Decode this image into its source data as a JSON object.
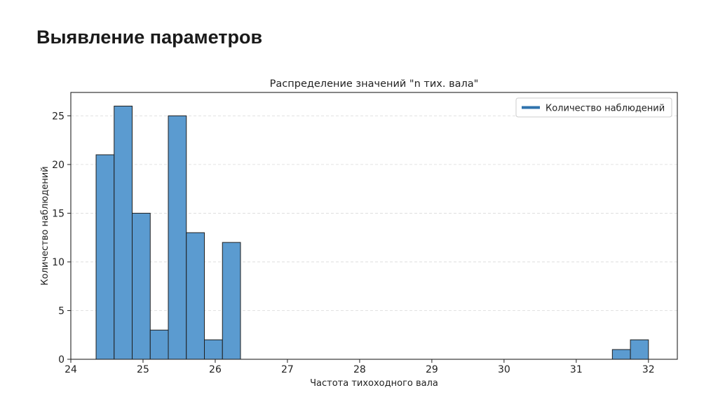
{
  "slide": {
    "title": "Выявление параметров"
  },
  "chart_data": {
    "type": "bar",
    "title": "Распределение значений \"n тих. вала\"",
    "xlabel": "Частота тихоходного вала",
    "ylabel": "Количество наблюдений",
    "xlim": [
      24,
      32.4
    ],
    "ylim": [
      0,
      27.4
    ],
    "xticks": [
      24,
      25,
      26,
      27,
      28,
      29,
      30,
      31,
      32
    ],
    "yticks": [
      0,
      5,
      10,
      15,
      20,
      25
    ],
    "bin_width": 0.25,
    "bins": [
      {
        "x0": 24.35,
        "value": 21
      },
      {
        "x0": 24.6,
        "value": 26
      },
      {
        "x0": 24.85,
        "value": 15
      },
      {
        "x0": 25.1,
        "value": 3
      },
      {
        "x0": 25.35,
        "value": 25
      },
      {
        "x0": 25.6,
        "value": 13
      },
      {
        "x0": 25.85,
        "value": 2
      },
      {
        "x0": 26.1,
        "value": 12
      },
      {
        "x0": 31.5,
        "value": 1
      },
      {
        "x0": 31.75,
        "value": 2
      }
    ],
    "legend": {
      "entries": [
        "Количество наблюдений"
      ],
      "placement": "top-right"
    },
    "grid": {
      "y": true,
      "x": false
    },
    "colors": {
      "bar_fill": "#5b9bd0",
      "bar_edge": "#1f1f1f",
      "legend_line": "#2f73ad",
      "grid": "#d9d9d9"
    }
  }
}
